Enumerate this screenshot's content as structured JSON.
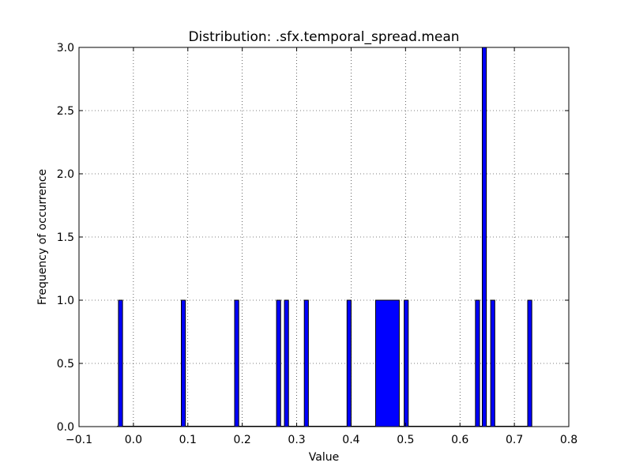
{
  "chart_data": {
    "type": "bar",
    "title": "Distribution: .sfx.temporal_spread.mean",
    "xlabel": "Value",
    "ylabel": "Frequency of occurrence",
    "xlim": [
      -0.1,
      0.8
    ],
    "ylim": [
      0,
      3.0
    ],
    "grid": true,
    "bar_color": "#0000ff",
    "edge_color": "#000000",
    "xticks": [
      -0.1,
      0.0,
      0.1,
      0.2,
      0.3,
      0.4,
      0.5,
      0.6,
      0.7,
      0.8
    ],
    "xtick_labels": [
      "−0.1",
      "0.0",
      "0.1",
      "0.2",
      "0.3",
      "0.4",
      "0.5",
      "0.6",
      "0.7",
      "0.8"
    ],
    "yticks": [
      0.0,
      0.5,
      1.0,
      1.5,
      2.0,
      2.5,
      3.0
    ],
    "ytick_labels": [
      "0.0",
      "0.5",
      "1.0",
      "1.5",
      "2.0",
      "2.5",
      "3.0"
    ],
    "bin_range": [
      -0.03,
      0.73
    ],
    "bins": [
      {
        "x0": -0.0275,
        "x1": -0.02,
        "count": 1
      },
      {
        "x0": 0.088,
        "x1": 0.0955,
        "count": 1
      },
      {
        "x0": 0.186,
        "x1": 0.1935,
        "count": 1
      },
      {
        "x0": 0.263,
        "x1": 0.2705,
        "count": 1
      },
      {
        "x0": 0.2775,
        "x1": 0.285,
        "count": 1
      },
      {
        "x0": 0.314,
        "x1": 0.3215,
        "count": 1
      },
      {
        "x0": 0.3925,
        "x1": 0.4,
        "count": 1
      },
      {
        "x0": 0.445,
        "x1": 0.4885,
        "count": 1
      },
      {
        "x0": 0.4975,
        "x1": 0.505,
        "count": 1
      },
      {
        "x0": 0.6285,
        "x1": 0.636,
        "count": 1
      },
      {
        "x0": 0.641,
        "x1": 0.6485,
        "count": 3
      },
      {
        "x0": 0.6565,
        "x1": 0.664,
        "count": 1
      },
      {
        "x0": 0.7245,
        "x1": 0.732,
        "count": 1
      }
    ]
  }
}
